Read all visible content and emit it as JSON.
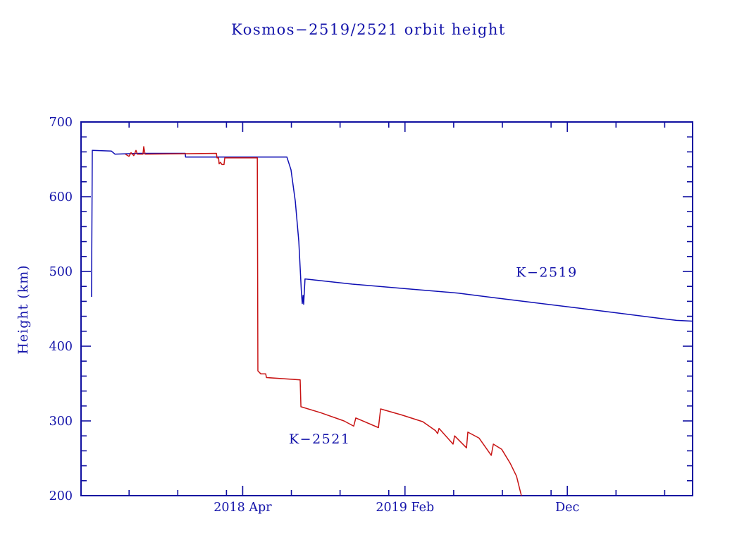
{
  "title": "Kosmos−2519/2521 orbit height",
  "colors": {
    "axis": "#0f0fa0",
    "text": "#1414aa",
    "k2519_line": "#0f0fb4",
    "k2521_line": "#c81414",
    "background": "#ffffff"
  },
  "chart_data": {
    "type": "line",
    "title": "Kosmos−2519/2521 orbit height",
    "xlabel": "",
    "ylabel": "Height (km)",
    "ylim": [
      200,
      700
    ],
    "xlim": [
      2017.42,
      2020.56
    ],
    "grid": false,
    "legend_position": "inline-annotations",
    "y_ticks_major": [
      200,
      300,
      400,
      500,
      600,
      700
    ],
    "y_minor_step": 20,
    "x_ticks_minor": [
      2017.6667,
      2017.9167,
      2018.1667,
      2018.5,
      2018.75,
      2019.0,
      2019.3333,
      2019.5833,
      2019.8333,
      2020.1667,
      2020.4167
    ],
    "x_ticks_major": [
      {
        "x": 2018.25,
        "label": "2018 Apr"
      },
      {
        "x": 2019.0833,
        "label": "2019 Feb"
      },
      {
        "x": 2019.9167,
        "label": "Dec"
      }
    ],
    "series": [
      {
        "name": "K−2519",
        "color": "#0f0fb4",
        "label_xy": [
          2019.653,
          493
        ],
        "points": [
          [
            2017.474,
            466
          ],
          [
            2017.478,
            662
          ],
          [
            2017.576,
            661
          ],
          [
            2017.594,
            657
          ],
          [
            2017.72,
            658
          ],
          [
            2017.955,
            658
          ],
          [
            2017.957,
            653
          ],
          [
            2018.321,
            653
          ],
          [
            2018.477,
            653
          ],
          [
            2018.498,
            636
          ],
          [
            2018.52,
            594
          ],
          [
            2018.538,
            540
          ],
          [
            2018.552,
            470
          ],
          [
            2018.556,
            457
          ],
          [
            2018.56,
            468
          ],
          [
            2018.563,
            456
          ],
          [
            2018.57,
            490
          ],
          [
            2018.813,
            483
          ],
          [
            2019.084,
            477
          ],
          [
            2019.356,
            471
          ],
          [
            2019.537,
            465
          ],
          [
            2019.754,
            458
          ],
          [
            2019.971,
            451
          ],
          [
            2020.188,
            444
          ],
          [
            2020.369,
            438
          ],
          [
            2020.477,
            434.5
          ],
          [
            2020.56,
            433.5
          ]
        ]
      },
      {
        "name": "K−2521",
        "color": "#c81414",
        "label_xy": [
          2018.487,
          270
        ],
        "points": [
          [
            2017.648,
            657
          ],
          [
            2017.666,
            654
          ],
          [
            2017.677,
            659
          ],
          [
            2017.691,
            655
          ],
          [
            2017.702,
            662
          ],
          [
            2017.709,
            657
          ],
          [
            2017.738,
            657
          ],
          [
            2017.742,
            667
          ],
          [
            2017.749,
            657
          ],
          [
            2018.115,
            658
          ],
          [
            2018.118,
            652
          ],
          [
            2018.126,
            652
          ],
          [
            2018.129,
            644
          ],
          [
            2018.136,
            646
          ],
          [
            2018.144,
            643
          ],
          [
            2018.154,
            643
          ],
          [
            2018.158,
            652
          ],
          [
            2018.325,
            652
          ],
          [
            2018.328,
            367
          ],
          [
            2018.343,
            363
          ],
          [
            2018.368,
            363
          ],
          [
            2018.372,
            358
          ],
          [
            2018.545,
            355
          ],
          [
            2018.549,
            319
          ],
          [
            2018.65,
            311
          ],
          [
            2018.77,
            300
          ],
          [
            2018.82,
            293
          ],
          [
            2018.831,
            304
          ],
          [
            2018.947,
            291
          ],
          [
            2018.958,
            316
          ],
          [
            2019.066,
            308
          ],
          [
            2019.175,
            299
          ],
          [
            2019.24,
            287
          ],
          [
            2019.251,
            283
          ],
          [
            2019.258,
            290
          ],
          [
            2019.33,
            269
          ],
          [
            2019.338,
            280
          ],
          [
            2019.399,
            264
          ],
          [
            2019.406,
            285
          ],
          [
            2019.464,
            277
          ],
          [
            2019.526,
            254
          ],
          [
            2019.537,
            269
          ],
          [
            2019.58,
            262
          ],
          [
            2019.624,
            243
          ],
          [
            2019.656,
            226
          ],
          [
            2019.674,
            207
          ],
          [
            2019.681,
            200
          ]
        ]
      }
    ]
  }
}
